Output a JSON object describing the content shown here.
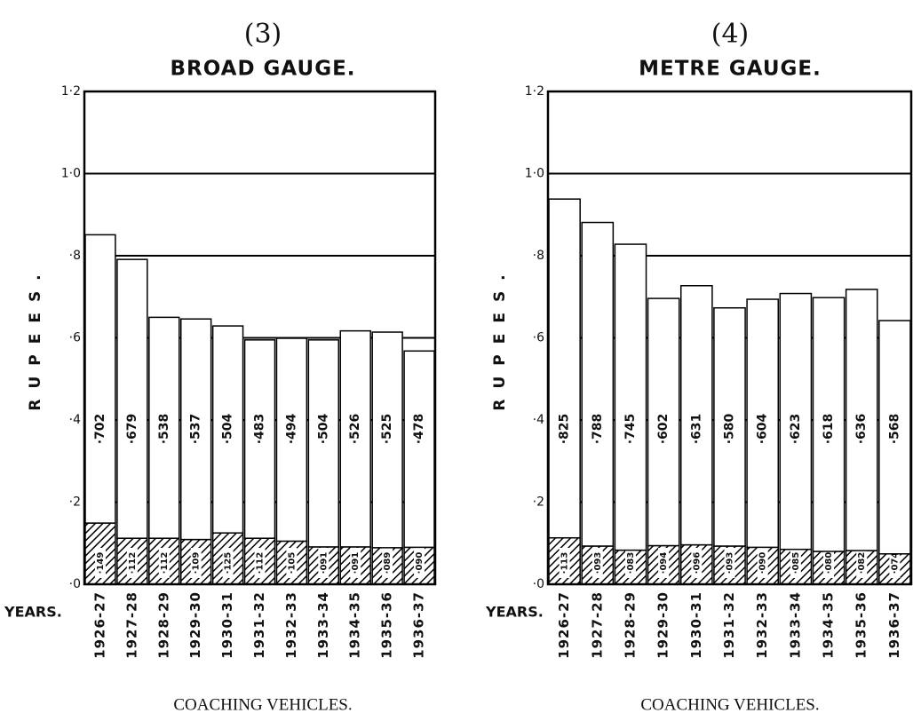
{
  "chart_data": [
    {
      "type": "bar",
      "stacked": true,
      "number": "(3)",
      "title": "BROAD GAUGE.",
      "ylabel": "RUPEES.",
      "xlabel": "COACHING VEHICLES.",
      "category_label": "YEARS.",
      "categories": [
        "1926-27",
        "1927-28",
        "1928-29",
        "1929-30",
        "1930-31",
        "1931-32",
        "1932-33",
        "1933-34",
        "1934-35",
        "1935-36",
        "1936-37"
      ],
      "series": [
        {
          "color": "#000000",
          "pattern": "hatch",
          "values": [
            0.149,
            0.112,
            0.112,
            0.109,
            0.125,
            0.112,
            0.105,
            0.091,
            0.091,
            0.089,
            0.09
          ],
          "value_labels": [
            "·149",
            "·112",
            "·112",
            "·109",
            "·125",
            "·112",
            "·105",
            "·091",
            "·091",
            "·089",
            "·090"
          ]
        },
        {
          "color": "#ffffff",
          "values": [
            0.702,
            0.679,
            0.538,
            0.537,
            0.504,
            0.483,
            0.494,
            0.504,
            0.526,
            0.525,
            0.478
          ],
          "value_labels": [
            "·702",
            "·679",
            "·538",
            "·537",
            "·504",
            "·483",
            "·494",
            "·504",
            "·526",
            "·525",
            "·478"
          ]
        }
      ],
      "ylim": [
        0,
        1.2
      ],
      "yticks": [
        {
          "value": 0,
          "label": "·0"
        },
        {
          "value": 0.2,
          "label": "·2"
        },
        {
          "value": 0.4,
          "label": "·4"
        },
        {
          "value": 0.6,
          "label": "·6"
        },
        {
          "value": 0.8,
          "label": "·8"
        },
        {
          "value": 1.0,
          "label": "1·0"
        },
        {
          "value": 1.2,
          "label": "1·2"
        }
      ],
      "grid": true
    },
    {
      "type": "bar",
      "stacked": true,
      "number": "(4)",
      "title": "METRE GAUGE.",
      "ylabel": "RUPEES.",
      "xlabel": "COACHING VEHICLES.",
      "category_label": "YEARS.",
      "categories": [
        "1926-27",
        "1927-28",
        "1928-29",
        "1929-30",
        "1930-31",
        "1931-32",
        "1932-33",
        "1933-34",
        "1934-35",
        "1935-36",
        "1936-37"
      ],
      "series": [
        {
          "color": "#000000",
          "pattern": "hatch",
          "values": [
            0.113,
            0.093,
            0.083,
            0.094,
            0.096,
            0.093,
            0.09,
            0.085,
            0.08,
            0.082,
            0.074
          ],
          "value_labels": [
            "·113",
            "·093",
            "·083",
            "·094",
            "·096",
            "·093",
            "·090",
            "·085",
            "·080",
            "·082",
            "·074"
          ]
        },
        {
          "color": "#ffffff",
          "values": [
            0.825,
            0.788,
            0.745,
            0.602,
            0.631,
            0.58,
            0.604,
            0.623,
            0.618,
            0.636,
            0.568
          ],
          "value_labels": [
            "·825",
            "·788",
            "·745",
            "·602",
            "·631",
            "·580",
            "·604",
            "·623",
            "·618",
            "·636",
            "·568"
          ]
        }
      ],
      "ylim": [
        0,
        1.2
      ],
      "yticks": [
        {
          "value": 0,
          "label": "·0"
        },
        {
          "value": 0.2,
          "label": "·2"
        },
        {
          "value": 0.4,
          "label": "·4"
        },
        {
          "value": 0.6,
          "label": "·6"
        },
        {
          "value": 0.8,
          "label": "·8"
        },
        {
          "value": 1.0,
          "label": "1·0"
        },
        {
          "value": 1.2,
          "label": "1·2"
        }
      ],
      "grid": true
    }
  ]
}
